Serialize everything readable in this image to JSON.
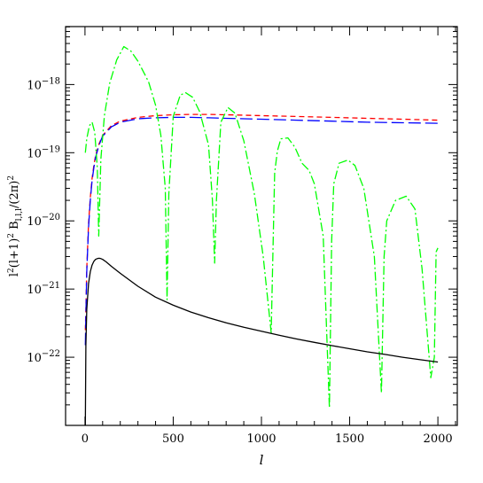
{
  "chart_data": {
    "type": "line",
    "title": "",
    "xlabel": "l",
    "ylabel": {
      "base": "l",
      "sup1": "2",
      "mid": "(l+1)",
      "sup2": "2",
      "sym": " B",
      "sub": "l,l,l",
      "end": "/(2π)",
      "sup3": "2"
    },
    "xlim": [
      -110,
      2110
    ],
    "ylim_log10": [
      -23.0,
      -17.15
    ],
    "yscale": "log",
    "grid": false,
    "legend": "none",
    "x_ticks": [
      0,
      500,
      1000,
      1500,
      2000
    ],
    "x_tick_labels": [
      "0",
      "500",
      "1000",
      "1500",
      "2000"
    ],
    "y_tick_exponents": [
      -22,
      -21,
      -20,
      -19,
      -18
    ],
    "y_tick_label_base": "10",
    "series": [
      {
        "color": "#ff0000",
        "dash": "6,4",
        "x": [
          2,
          5,
          10,
          20,
          30,
          40,
          50,
          60,
          80,
          100,
          150,
          200,
          300,
          400,
          500,
          600,
          700,
          800,
          1000,
          1200,
          1400,
          1600,
          1800,
          2000
        ],
        "y": [
          2.5e-22,
          5e-22,
          2e-21,
          9e-21,
          2.2e-20,
          4.2e-20,
          6.5e-20,
          9e-20,
          1.35e-19,
          1.8e-19,
          2.5e-19,
          2.9e-19,
          3.3e-19,
          3.5e-19,
          3.6e-19,
          3.65e-19,
          3.65e-19,
          3.6e-19,
          3.5e-19,
          3.4e-19,
          3.3e-19,
          3.2e-19,
          3.1e-19,
          3e-19
        ]
      },
      {
        "color": "#0000ff",
        "dash": "14,5",
        "x": [
          2,
          5,
          10,
          20,
          30,
          40,
          50,
          60,
          80,
          100,
          150,
          200,
          300,
          400,
          500,
          600,
          700,
          800,
          1000,
          1200,
          1400,
          1600,
          1800,
          2000
        ],
        "y": [
          1.5e-22,
          4e-22,
          1.8e-21,
          8e-21,
          2e-20,
          3.9e-20,
          6e-20,
          8.5e-20,
          1.3e-19,
          1.75e-19,
          2.4e-19,
          2.8e-19,
          3.15e-19,
          3.25e-19,
          3.3e-19,
          3.3e-19,
          3.25e-19,
          3.2e-19,
          3.1e-19,
          3e-19,
          2.9e-19,
          2.8e-19,
          2.75e-19,
          2.7e-19
        ]
      },
      {
        "color": "#00ff00",
        "dash": "10,3,2,3",
        "x": [
          2,
          10,
          25,
          40,
          55,
          70,
          78,
          90,
          110,
          140,
          180,
          220,
          260,
          300,
          360,
          400,
          430,
          455,
          465,
          475,
          500,
          540,
          570,
          610,
          650,
          700,
          722,
          735,
          745,
          770,
          810,
          850,
          900,
          960,
          1010,
          1055,
          1075,
          1090,
          1110,
          1150,
          1190,
          1230,
          1270,
          1300,
          1350,
          1385,
          1398,
          1410,
          1440,
          1490,
          1530,
          1580,
          1640,
          1680,
          1695,
          1710,
          1760,
          1820,
          1870,
          1910,
          1960,
          1980,
          1990,
          2000
        ],
        "y": [
          1e-19,
          1.6e-19,
          2.5e-19,
          2.8e-19,
          2e-19,
          6e-20,
          6e-21,
          8e-20,
          3.5e-19,
          1.05e-18,
          2.3e-18,
          3.6e-18,
          3.1e-18,
          2.2e-18,
          1.1e-18,
          5e-19,
          1.8e-19,
          3e-20,
          7e-22,
          2.5e-20,
          3.4e-19,
          7e-19,
          7.6e-19,
          6.5e-19,
          4e-19,
          1.3e-19,
          2e-20,
          2.4e-21,
          2e-20,
          2.8e-19,
          4.6e-19,
          3.8e-19,
          1.5e-19,
          2.5e-20,
          3e-21,
          2.3e-22,
          5e-20,
          1.05e-19,
          1.6e-19,
          1.65e-19,
          1.2e-19,
          7e-20,
          5.5e-20,
          3.5e-20,
          6e-21,
          1.8e-23,
          5e-21,
          3.5e-20,
          7e-20,
          7.8e-20,
          6.5e-20,
          3e-20,
          3e-21,
          3e-23,
          3e-21,
          1e-20,
          2e-20,
          2.3e-20,
          1.5e-20,
          2e-21,
          5e-23,
          1e-22,
          3.5e-21,
          4e-21
        ]
      },
      {
        "color": "#000000",
        "dash": "",
        "x": [
          2,
          5,
          10,
          20,
          30,
          40,
          50,
          60,
          70,
          80,
          90,
          100,
          120,
          150,
          200,
          300,
          400,
          500,
          600,
          700,
          800,
          900,
          1000,
          1100,
          1200,
          1300,
          1400,
          1500,
          1600,
          1700,
          1800,
          1900,
          2000
        ],
        "y": [
          1e-23,
          1.5e-22,
          5e-22,
          1.2e-21,
          1.8e-21,
          2.25e-21,
          2.55e-21,
          2.72e-21,
          2.8e-21,
          2.83e-21,
          2.8e-21,
          2.72e-21,
          2.5e-21,
          2.15e-21,
          1.7e-21,
          1.1e-21,
          7.6e-22,
          5.8e-22,
          4.6e-22,
          3.8e-22,
          3.2e-22,
          2.75e-22,
          2.4e-22,
          2.1e-22,
          1.85e-22,
          1.65e-22,
          1.48e-22,
          1.33e-22,
          1.2e-22,
          1.1e-22,
          1e-22,
          9.2e-23,
          8.5e-23
        ]
      }
    ]
  }
}
